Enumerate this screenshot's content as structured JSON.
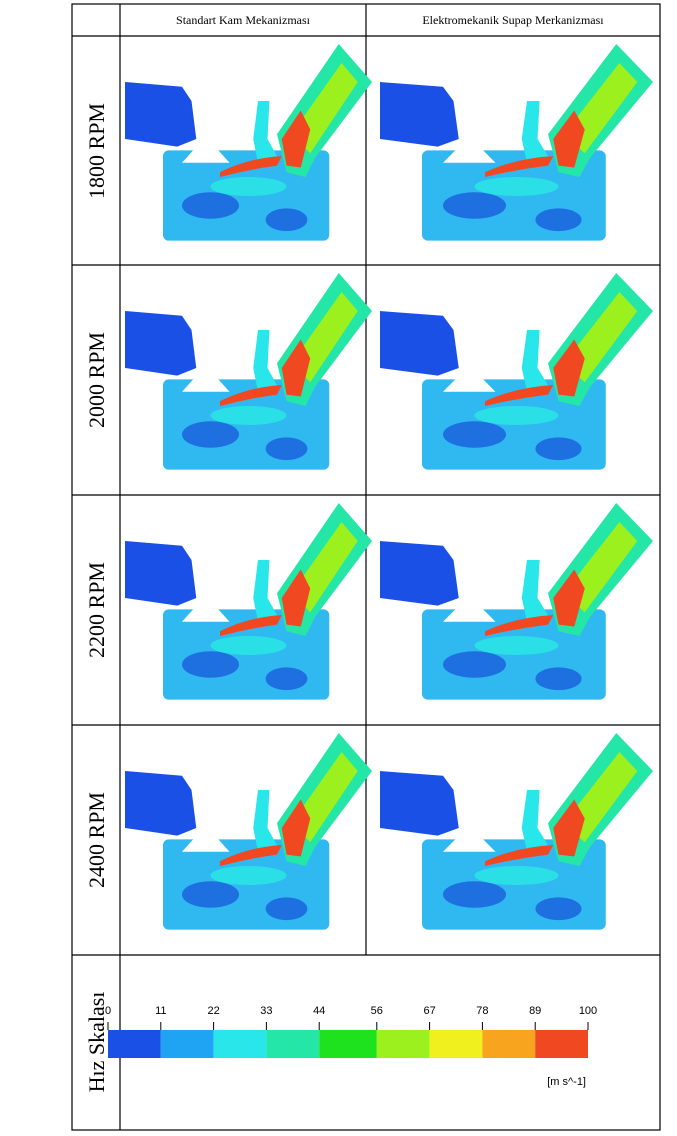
{
  "header": {
    "columns": [
      "Standart Kam Mekanizması",
      "Elektromekanik Supap Merkanizması"
    ]
  },
  "rows": [
    {
      "label": "1800 RPM"
    },
    {
      "label": "2000 RPM"
    },
    {
      "label": "2200 RPM"
    },
    {
      "label": "2400 RPM"
    }
  ],
  "scale": {
    "label": "Hız Skalası",
    "lim": [
      0,
      100
    ],
    "ticks": [
      0,
      11,
      22,
      33,
      44,
      56,
      67,
      78,
      89,
      100
    ],
    "colors": [
      "#1a50e6",
      "#1ea4f2",
      "#28e6ea",
      "#24e6a6",
      "#1ee21e",
      "#9cf01e",
      "#f0f01e",
      "#f8a41e",
      "#f04820"
    ],
    "unit": "[m s^-1]"
  }
}
